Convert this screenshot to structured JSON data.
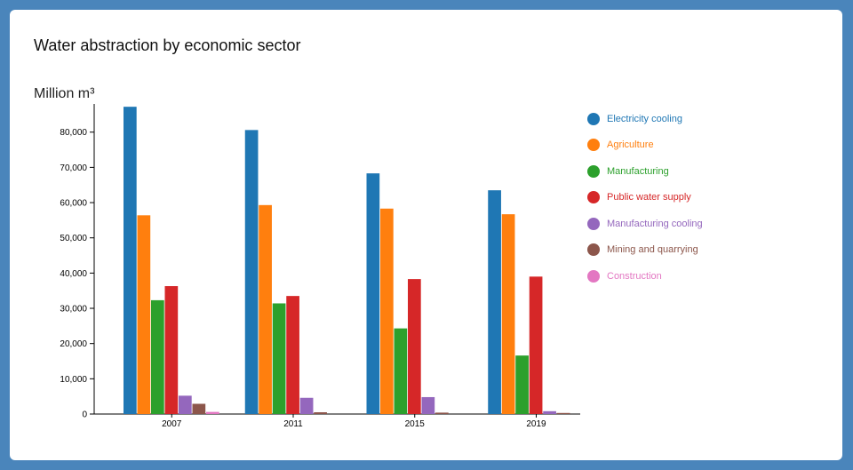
{
  "card": {
    "title": "Water abstraction by economic sector",
    "unit": "Million m³"
  },
  "chart_data": {
    "type": "bar",
    "title": "Water abstraction by economic sector",
    "ylabel": "Million m³",
    "xlabel": "",
    "ylim": [
      0,
      88000
    ],
    "y_ticks": [
      0,
      10000,
      20000,
      30000,
      40000,
      50000,
      60000,
      70000,
      80000
    ],
    "y_tick_labels": [
      "0",
      "10,000",
      "20,000",
      "30,000",
      "40,000",
      "50,000",
      "60,000",
      "70,000",
      "80,000"
    ],
    "categories": [
      "2007",
      "2011",
      "2015",
      "2019"
    ],
    "legend_position": "right",
    "grid": false,
    "series": [
      {
        "name": "Electricity cooling",
        "color": "#1f77b4",
        "values": [
          87200,
          80600,
          68300,
          63500
        ]
      },
      {
        "name": "Agriculture",
        "color": "#ff7f0e",
        "values": [
          56400,
          59300,
          58300,
          56700
        ]
      },
      {
        "name": "Manufacturing",
        "color": "#2ca02c",
        "values": [
          32300,
          31400,
          24300,
          16600
        ]
      },
      {
        "name": "Public water supply",
        "color": "#d62728",
        "values": [
          36300,
          33500,
          38300,
          39000
        ]
      },
      {
        "name": "Manufacturing cooling",
        "color": "#9467bd",
        "values": [
          5200,
          4600,
          4800,
          800
        ]
      },
      {
        "name": "Mining and quarrying",
        "color": "#8c564b",
        "values": [
          2900,
          500,
          400,
          300
        ]
      },
      {
        "name": "Construction",
        "color": "#e377c2",
        "values": [
          600,
          0,
          0,
          0
        ]
      }
    ]
  }
}
